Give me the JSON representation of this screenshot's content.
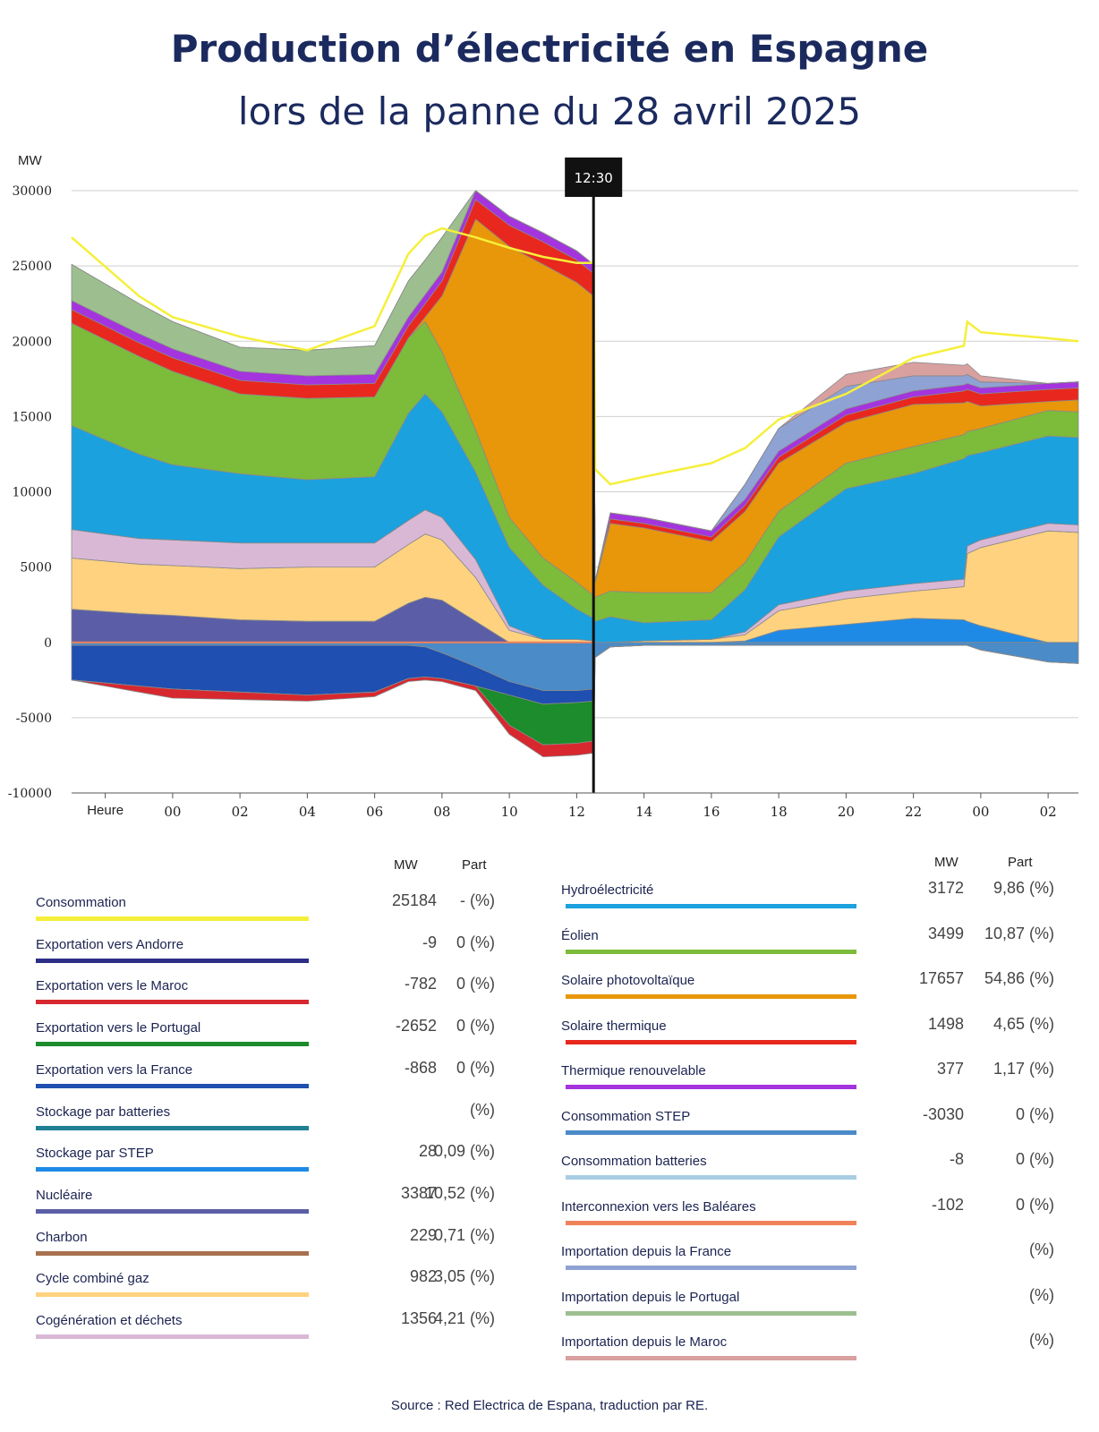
{
  "title": "Production d’électricité en Espagne",
  "subtitle": "lors de la panne du 28 avril 2025",
  "source": "Source : Red Electrica de Espana, traduction par RE.",
  "chart_data": {
    "type": "area",
    "ylabel": "MW",
    "ylim": [
      -10000,
      30000
    ],
    "yticks": [
      "30000",
      "25000",
      "20000",
      "15000",
      "10000",
      "5000",
      "0",
      "-5000",
      "-10000"
    ],
    "ytick_values": [
      30000,
      25000,
      20000,
      15000,
      10000,
      5000,
      0,
      -5000,
      -10000
    ],
    "xlabel": "Heure",
    "xticks": [
      "00",
      "02",
      "04",
      "06",
      "08",
      "10",
      "12",
      "14",
      "16",
      "18",
      "20",
      "22",
      "00",
      "02"
    ],
    "xtick_values": [
      0,
      2,
      4,
      6,
      8,
      10,
      12,
      14,
      16,
      18,
      20,
      22,
      24,
      26
    ],
    "xlim": [
      -3,
      26.9
    ],
    "grid": true,
    "marker": {
      "x": 12.5,
      "label": "12:30"
    },
    "x": [
      -3,
      -1,
      0,
      2,
      4,
      6,
      7,
      7.5,
      8,
      9,
      10,
      11,
      12,
      12.5,
      12.55,
      13,
      14,
      16,
      17,
      18,
      20,
      22,
      23.5,
      23.6,
      24,
      26,
      26.9
    ],
    "stack_order": [
      "Nucléaire",
      "Cycle combiné gaz",
      "Cogénération et déchets",
      "Hydroélectricité",
      "Éolien",
      "Solaire photovoltaïque",
      "Solaire thermique",
      "Thermique renouvelable",
      "Importation depuis la France",
      "Importation depuis le Portugal",
      "Importation depuis le Maroc"
    ],
    "series": [
      {
        "name": "Nucléaire",
        "color": "#5b5ea6",
        "values": [
          2200,
          1900,
          1800,
          1500,
          1400,
          1400,
          2600,
          3000,
          2800,
          1400,
          0,
          0,
          0,
          0,
          0,
          0,
          0,
          0,
          0,
          0,
          0,
          0,
          0,
          0,
          0,
          0,
          0
        ]
      },
      {
        "name": "Stockage par STEP",
        "color": "#1f8ae6",
        "values": [
          0,
          0,
          0,
          0,
          0,
          0,
          0,
          0,
          0,
          0,
          0,
          0,
          0,
          0,
          0,
          0,
          0,
          0,
          100,
          800,
          1200,
          1600,
          1500,
          1400,
          1100,
          0,
          0
        ]
      },
      {
        "name": "Cycle combiné gaz",
        "color": "#ffd27f",
        "values": [
          3400,
          3300,
          3300,
          3400,
          3600,
          3600,
          3900,
          4200,
          4000,
          2900,
          800,
          200,
          200,
          100,
          0,
          0,
          100,
          200,
          400,
          1300,
          1700,
          1800,
          2200,
          4500,
          5200,
          7400,
          7300
        ]
      },
      {
        "name": "Cogénération et déchets",
        "color": "#d9b8d6",
        "values": [
          1900,
          1700,
          1700,
          1700,
          1600,
          1600,
          1600,
          1600,
          1500,
          1200,
          300,
          0,
          0,
          0,
          0,
          0,
          0,
          0,
          200,
          400,
          500,
          500,
          500,
          500,
          500,
          500,
          500
        ]
      },
      {
        "name": "Hydroélectricité",
        "color": "#1ba1de",
        "values": [
          6900,
          5600,
          5000,
          4600,
          4200,
          4400,
          7100,
          7700,
          7000,
          5800,
          5200,
          3600,
          2000,
          1500,
          1400,
          1700,
          1200,
          1300,
          2800,
          4500,
          6800,
          7300,
          8000,
          6000,
          5800,
          5800,
          5800
        ]
      },
      {
        "name": "Éolien",
        "color": "#7dbb3a",
        "values": [
          6800,
          6500,
          6200,
          5300,
          5400,
          5300,
          5000,
          4800,
          4000,
          2800,
          2000,
          1800,
          1800,
          1500,
          1600,
          1700,
          2000,
          1800,
          1800,
          1700,
          1700,
          1800,
          1600,
          1600,
          1600,
          1700,
          1700
        ]
      },
      {
        "name": "Solaire photovoltaïque",
        "color": "#e8960a",
        "values": [
          0,
          0,
          0,
          0,
          0,
          0,
          0,
          300,
          3700,
          14000,
          18000,
          19500,
          19900,
          19900,
          1000,
          4500,
          4300,
          3400,
          3400,
          3200,
          2700,
          2800,
          2100,
          2000,
          1500,
          600,
          800
        ]
      },
      {
        "name": "Solaire thermique",
        "color": "#e8281e",
        "values": [
          900,
          900,
          900,
          900,
          900,
          900,
          800,
          900,
          1000,
          1300,
          1400,
          1500,
          1500,
          1500,
          100,
          300,
          300,
          300,
          400,
          400,
          500,
          500,
          800,
          800,
          800,
          800,
          800
        ]
      },
      {
        "name": "Thermique renouvelable",
        "color": "#a434de",
        "values": [
          600,
          600,
          600,
          600,
          600,
          600,
          600,
          600,
          600,
          600,
          600,
          600,
          600,
          600,
          0,
          400,
          400,
          400,
          400,
          400,
          400,
          400,
          400,
          400,
          400,
          400,
          400
        ]
      },
      {
        "name": "Importation depuis la France",
        "color": "#8fa2d4",
        "values": [
          0,
          0,
          0,
          0,
          0,
          0,
          0,
          0,
          0,
          0,
          0,
          0,
          0,
          0,
          0,
          0,
          0,
          0,
          1000,
          1500,
          1500,
          1000,
          600,
          600,
          400,
          0,
          0
        ]
      },
      {
        "name": "Importation depuis le Portugal",
        "color": "#9dbf8f",
        "values": [
          2400,
          2000,
          1800,
          1600,
          1700,
          1900,
          2400,
          2300,
          2300,
          0,
          0,
          0,
          0,
          0,
          0,
          0,
          0,
          0,
          0,
          0,
          0,
          0,
          0,
          0,
          0,
          0,
          0
        ]
      },
      {
        "name": "Importation depuis le Maroc",
        "color": "#d9a0a0",
        "values": [
          0,
          0,
          0,
          0,
          0,
          0,
          0,
          0,
          0,
          0,
          0,
          0,
          0,
          0,
          0,
          0,
          0,
          0,
          0,
          0,
          800,
          900,
          700,
          700,
          400,
          0,
          0
        ]
      },
      {
        "name": "Consommation STEP",
        "color": "#4a8bc8",
        "values": [
          -200,
          -200,
          -200,
          -200,
          -200,
          -200,
          -200,
          -300,
          -700,
          -1600,
          -2600,
          -3200,
          -3200,
          -3100,
          -1000,
          -300,
          -200,
          -200,
          -200,
          -200,
          -200,
          -200,
          -200,
          -200,
          -500,
          -1300,
          -1400
        ]
      },
      {
        "name": "Exportation vers la France",
        "color": "#1f4fb0",
        "values": [
          -2300,
          -2700,
          -2900,
          -3100,
          -3300,
          -3100,
          -2200,
          -2000,
          -1700,
          -1300,
          -900,
          -900,
          -800,
          -800,
          0,
          0,
          0,
          0,
          0,
          0,
          0,
          0,
          0,
          0,
          0,
          0,
          0
        ]
      },
      {
        "name": "Exportation vers le Portugal",
        "color": "#1c8c2c",
        "values": [
          0,
          0,
          0,
          0,
          0,
          0,
          0,
          0,
          0,
          0,
          -2000,
          -2700,
          -2700,
          -2650,
          0,
          0,
          0,
          0,
          0,
          0,
          0,
          0,
          0,
          0,
          0,
          0,
          0
        ]
      },
      {
        "name": "Exportation vers le Maroc",
        "color": "#d7282f",
        "values": [
          0,
          -400,
          -600,
          -500,
          -400,
          -300,
          -200,
          -200,
          -200,
          -300,
          -600,
          -800,
          -800,
          -800,
          0,
          0,
          0,
          0,
          0,
          0,
          0,
          0,
          0,
          0,
          0,
          0,
          0
        ]
      },
      {
        "name": "Consommation",
        "color": "#f5ef3a",
        "values": [
          26900,
          23000,
          21600,
          20300,
          19400,
          21000,
          25800,
          27000,
          27500,
          26900,
          26200,
          25600,
          25200,
          25200,
          11500,
          10500,
          11000,
          11900,
          12900,
          14800,
          16500,
          18900,
          19700,
          21300,
          20600,
          20200,
          20000
        ]
      }
    ]
  },
  "legend": {
    "mw_header": "MW",
    "part_header": "Part",
    "left": [
      {
        "name": "Consommation",
        "mw": "25184",
        "part": "- (%)",
        "color": "#f5ef3a"
      },
      {
        "name": "Exportation vers Andorre",
        "mw": "-9",
        "part": "0 (%)",
        "color": "#2d2e86"
      },
      {
        "name": "Exportation vers le Maroc",
        "mw": "-782",
        "part": "0 (%)",
        "color": "#d7282f"
      },
      {
        "name": "Exportation vers le Portugal",
        "mw": "-2652",
        "part": "0 (%)",
        "color": "#1c8c2c"
      },
      {
        "name": "Exportation vers la France",
        "mw": "-868",
        "part": "0 (%)",
        "color": "#1f4fb0"
      },
      {
        "name": "Stockage par batteries",
        "mw": "",
        "part": "(%)",
        "color": "#1f7f93"
      },
      {
        "name": "Stockage par STEP",
        "mw": "28",
        "part": "0,09 (%)",
        "color": "#1f8ae6"
      },
      {
        "name": "Nucléaire",
        "mw": "3387",
        "part": "10,52 (%)",
        "color": "#5b5ea6"
      },
      {
        "name": "Charbon",
        "mw": "229",
        "part": "0,71 (%)",
        "color": "#a8704e"
      },
      {
        "name": "Cycle combiné gaz",
        "mw": "982",
        "part": "3,05 (%)",
        "color": "#ffd27f"
      },
      {
        "name": "Cogénération et déchets",
        "mw": "1356",
        "part": "4,21 (%)",
        "color": "#d9b8d6"
      }
    ],
    "right": [
      {
        "name": "Hydroélectricité",
        "mw": "3172",
        "part": "9,86 (%)",
        "color": "#1ba1de"
      },
      {
        "name": "Éolien",
        "mw": "3499",
        "part": "10,87 (%)",
        "color": "#7dbb3a"
      },
      {
        "name": "Solaire photovoltaïque",
        "mw": "17657",
        "part": "54,86 (%)",
        "color": "#e8960a"
      },
      {
        "name": "Solaire thermique",
        "mw": "1498",
        "part": "4,65 (%)",
        "color": "#e8281e"
      },
      {
        "name": "Thermique renouvelable",
        "mw": "377",
        "part": "1,17 (%)",
        "color": "#a434de"
      },
      {
        "name": "Consommation STEP",
        "mw": "-3030",
        "part": "0 (%)",
        "color": "#4a8bc8"
      },
      {
        "name": "Consommation batteries",
        "mw": "-8",
        "part": "0 (%)",
        "color": "#a8cde3"
      },
      {
        "name": "Interconnexion vers les Baléares",
        "mw": "-102",
        "part": "0 (%)",
        "color": "#f0825a"
      },
      {
        "name": "Importation depuis la France",
        "mw": "",
        "part": "(%)",
        "color": "#8fa2d4"
      },
      {
        "name": "Importation depuis le Portugal",
        "mw": "",
        "part": "(%)",
        "color": "#9dbf8f"
      },
      {
        "name": "Importation depuis le Maroc",
        "mw": "",
        "part": "(%)",
        "color": "#d9a0a0"
      }
    ]
  }
}
